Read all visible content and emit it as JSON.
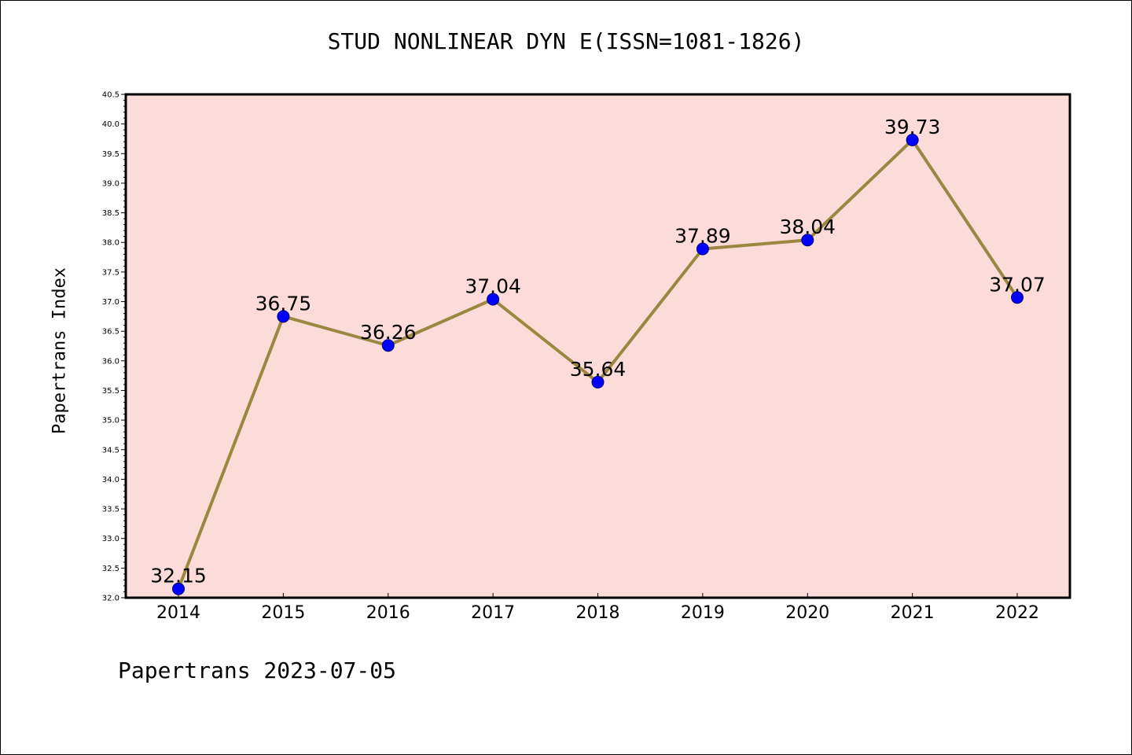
{
  "title": "STUD NONLINEAR DYN E(ISSN=1081-1826)",
  "footer": "Papertrans 2023-07-05",
  "chart_data": {
    "type": "line",
    "title": "STUD NONLINEAR DYN E(ISSN=1081-1826)",
    "xlabel": "",
    "ylabel": "Papertrans Index",
    "categories": [
      "2014",
      "2015",
      "2016",
      "2017",
      "2018",
      "2019",
      "2020",
      "2021",
      "2022"
    ],
    "series": [
      {
        "values": [
          32.15,
          36.75,
          36.26,
          37.04,
          35.64,
          37.89,
          38.04,
          39.73,
          37.07
        ],
        "data_labels": [
          "32.15",
          "36.75",
          "36.26",
          "37.04",
          "35.64",
          "37.89",
          "38.04",
          "39.73",
          "37.07"
        ]
      }
    ],
    "ylim": [
      32.0,
      40.5
    ],
    "ytick_step": 0.5,
    "grid": false,
    "colors": {
      "plot_background": "#fddbd8",
      "line": "#9b8740",
      "marker": "#0000ff"
    }
  }
}
